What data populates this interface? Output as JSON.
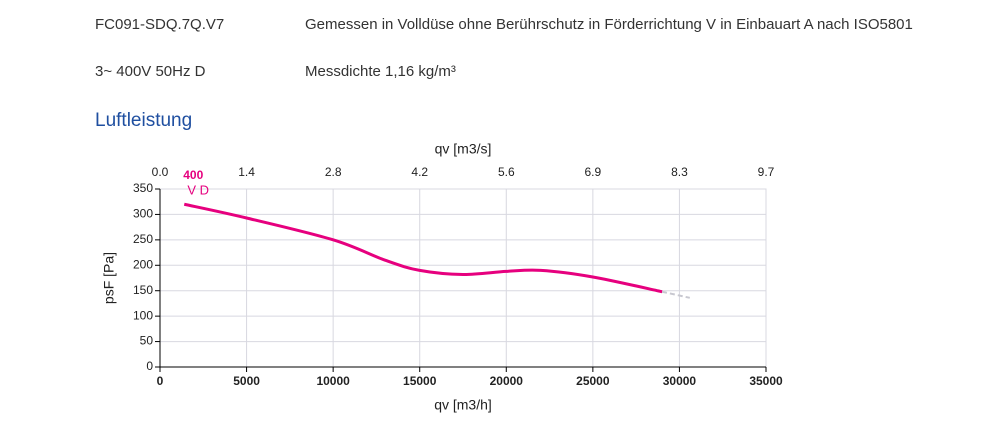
{
  "header": {
    "rows": [
      [
        "FC091-SDQ.7Q.V7",
        "Gemessen in Volldüse ohne Berührschutz in Förderrichtung V in Einbauart A nach ISO5801"
      ],
      [
        "3~ 400V 50Hz D",
        "Messdichte 1,16 kg/m³"
      ]
    ]
  },
  "section_title": "Luftleistung",
  "chart_data": {
    "type": "line",
    "x_label": "qv [m3/h]",
    "x2_label": "qv [m3/s]",
    "y_label": "psF [Pa]",
    "xlim": [
      0,
      35000
    ],
    "xticks": [
      0,
      5000,
      10000,
      15000,
      20000,
      25000,
      30000,
      35000
    ],
    "x2lim": [
      0,
      9.722
    ],
    "x2ticks": [
      {
        "value": 0,
        "label": "0.0"
      },
      {
        "value": 1.389,
        "label": "1.4"
      },
      {
        "value": 2.778,
        "label": "2.8"
      },
      {
        "value": 4.167,
        "label": "4.2"
      },
      {
        "value": 5.556,
        "label": "5.6"
      },
      {
        "value": 6.944,
        "label": "6.9"
      },
      {
        "value": 8.333,
        "label": "8.3"
      },
      {
        "value": 9.722,
        "label": "9.7"
      }
    ],
    "ylim": [
      0,
      350
    ],
    "yticks": [
      0,
      50,
      100,
      150,
      200,
      250,
      300,
      350
    ],
    "grid": true,
    "series": [
      {
        "name": "400",
        "color": "#e6007e",
        "x": [
          1400,
          5000,
          10000,
          13000,
          15000,
          17500,
          20000,
          22000,
          25000,
          29000
        ],
        "values": [
          320,
          293,
          250,
          210,
          190,
          182,
          188,
          190,
          177,
          148
        ]
      },
      {
        "color": "#c8c8d0",
        "dashed": true,
        "x": [
          29000,
          30600
        ],
        "values": [
          148,
          136
        ]
      }
    ],
    "annotations": [
      {
        "text": "V D"
      }
    ]
  }
}
